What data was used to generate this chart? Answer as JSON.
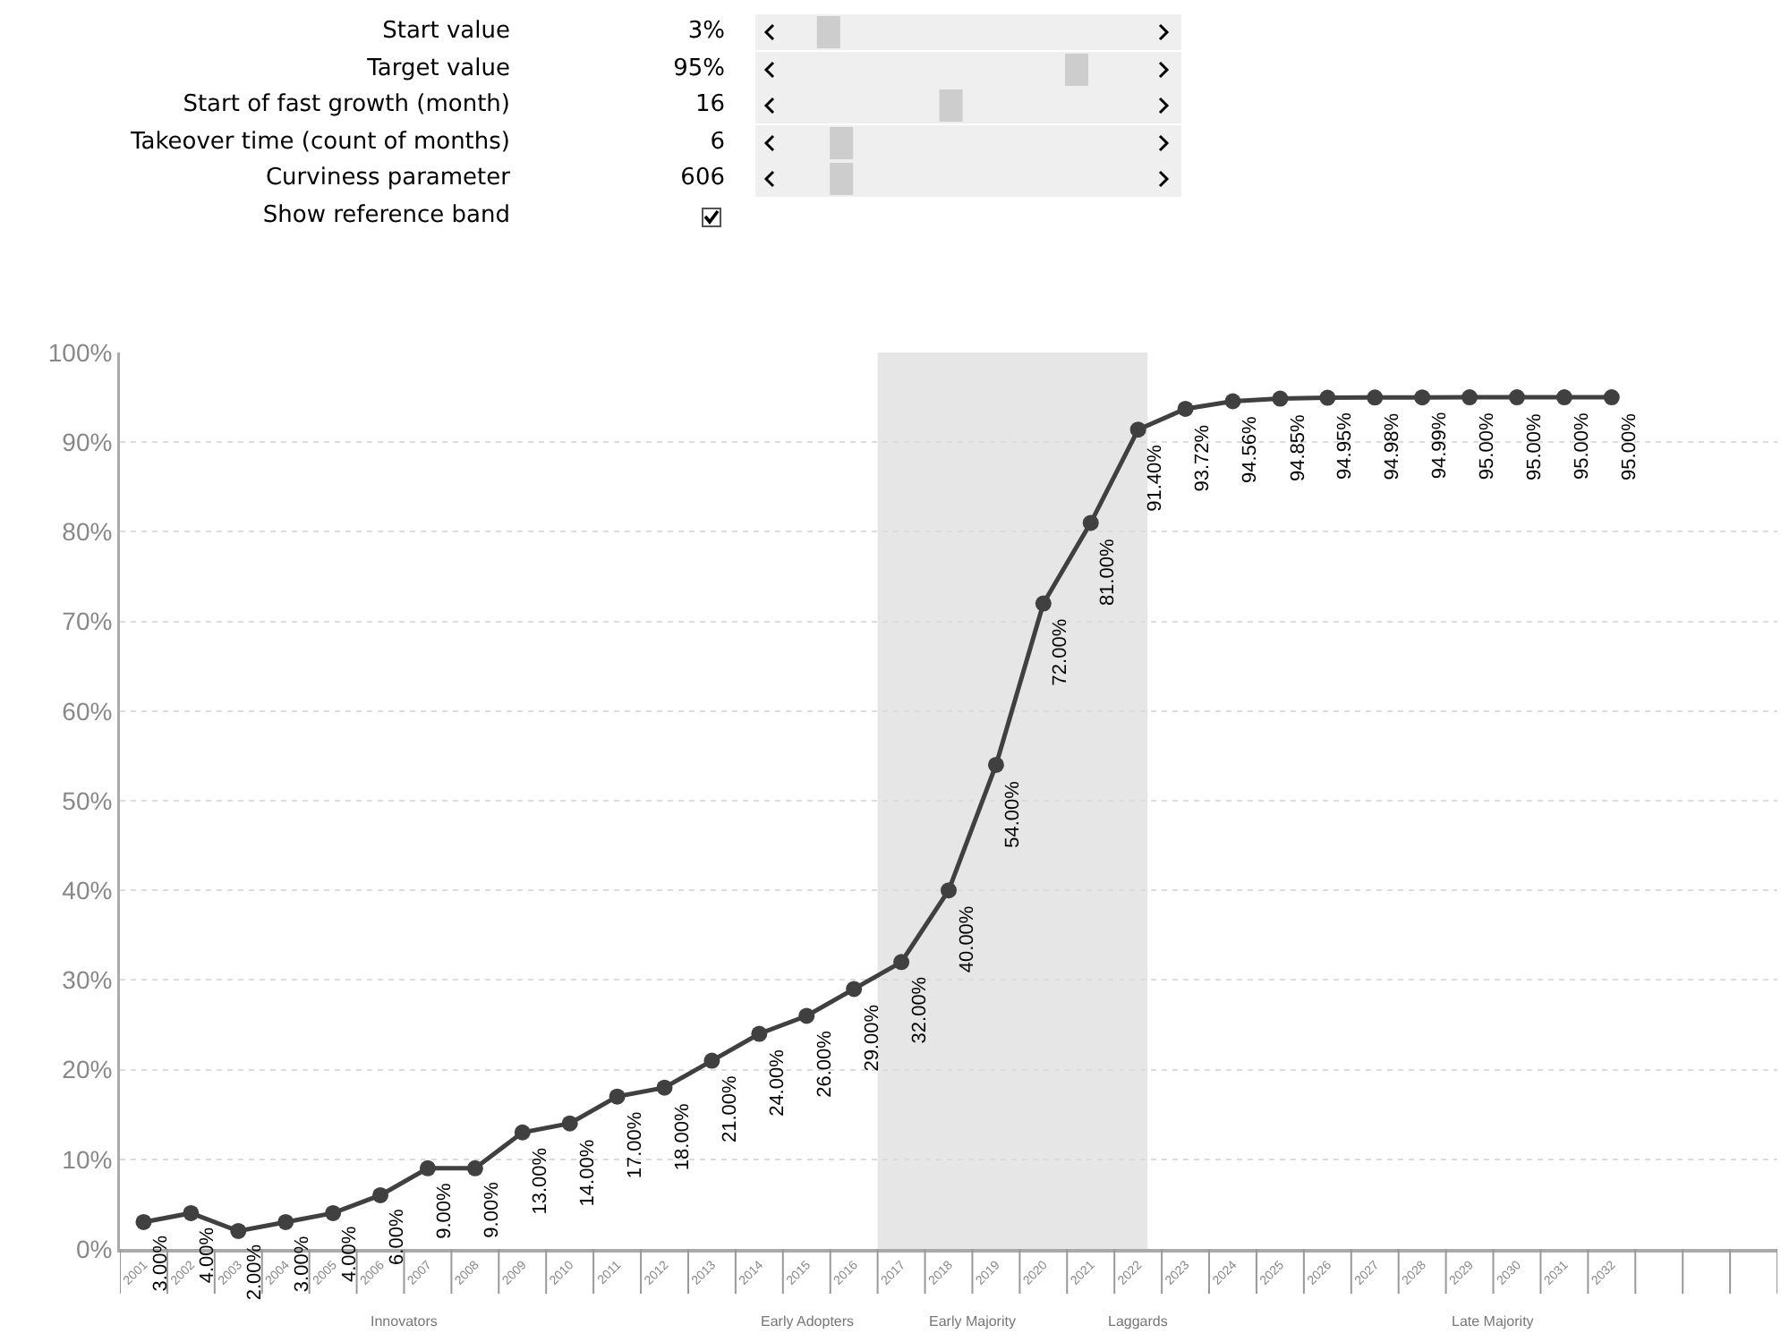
{
  "chart_data": {
    "type": "line",
    "categories": [
      "2001",
      "2002",
      "2003",
      "2004",
      "2005",
      "2006",
      "2007",
      "2008",
      "2009",
      "2010",
      "2011",
      "2012",
      "2013",
      "2014",
      "2015",
      "2016",
      "2017",
      "2018",
      "2019",
      "2020",
      "2021",
      "2022",
      "2023",
      "2024",
      "2025",
      "2026",
      "2027",
      "2028",
      "2029",
      "2030",
      "2031",
      "2032",
      null,
      null,
      null
    ],
    "series": [
      {
        "color": "#404040",
        "values": [
          3,
          4,
          2,
          3,
          4,
          6,
          9,
          9,
          13,
          14,
          17,
          18,
          21,
          24,
          26,
          29,
          32,
          40,
          54,
          72,
          81,
          91.4,
          93.72,
          94.56,
          94.85,
          94.95,
          94.98,
          94.99,
          95,
          95,
          95,
          95,
          null,
          null,
          null
        ],
        "value_labels": [
          "3.00%",
          "4.00%",
          "2.00%",
          "3.00%",
          "4.00%",
          "6.00%",
          "9.00%",
          "9.00%",
          "13.00%",
          "14.00%",
          "17.00%",
          "18.00%",
          "21.00%",
          "24.00%",
          "26.00%",
          "29.00%",
          "32.00%",
          "40.00%",
          "54.00%",
          "72.00%",
          "81.00%",
          "91.40%",
          "93.72%",
          "94.56%",
          "94.85%",
          "94.95%",
          "94.98%",
          "94.99%",
          "95.00%",
          "95.00%",
          "95.00%",
          "95.00%",
          null,
          null,
          null
        ]
      }
    ],
    "ylim": [
      0,
      100
    ],
    "yticks": [
      {
        "value": 0,
        "label": "0%"
      },
      {
        "value": 10,
        "label": "10%"
      },
      {
        "value": 20,
        "label": "20%"
      },
      {
        "value": 30,
        "label": "30%"
      },
      {
        "value": 40,
        "label": "40%"
      },
      {
        "value": 50,
        "label": "50%"
      },
      {
        "value": 60,
        "label": "60%"
      },
      {
        "value": 70,
        "label": "70%"
      },
      {
        "value": 80,
        "label": "80%"
      },
      {
        "value": 90,
        "label": "90%"
      },
      {
        "value": 100,
        "label": "100%"
      }
    ],
    "grid": "y",
    "marker": "circle",
    "line_style": "solid",
    "bands": [
      {
        "axis": "x",
        "from": "2016",
        "to": "2022",
        "color": "#e6e6e6"
      }
    ],
    "annotations": [
      "Start value",
      "3%",
      "Target value",
      "95%",
      "Start of fast growth (month)",
      "16",
      "Takeover time (count of months)",
      "6",
      "Curviness parameter",
      "606",
      "Show reference band",
      "Innovators",
      "Early Adopters",
      "Early Majority",
      "Laggards",
      "Late Majority"
    ]
  }
}
